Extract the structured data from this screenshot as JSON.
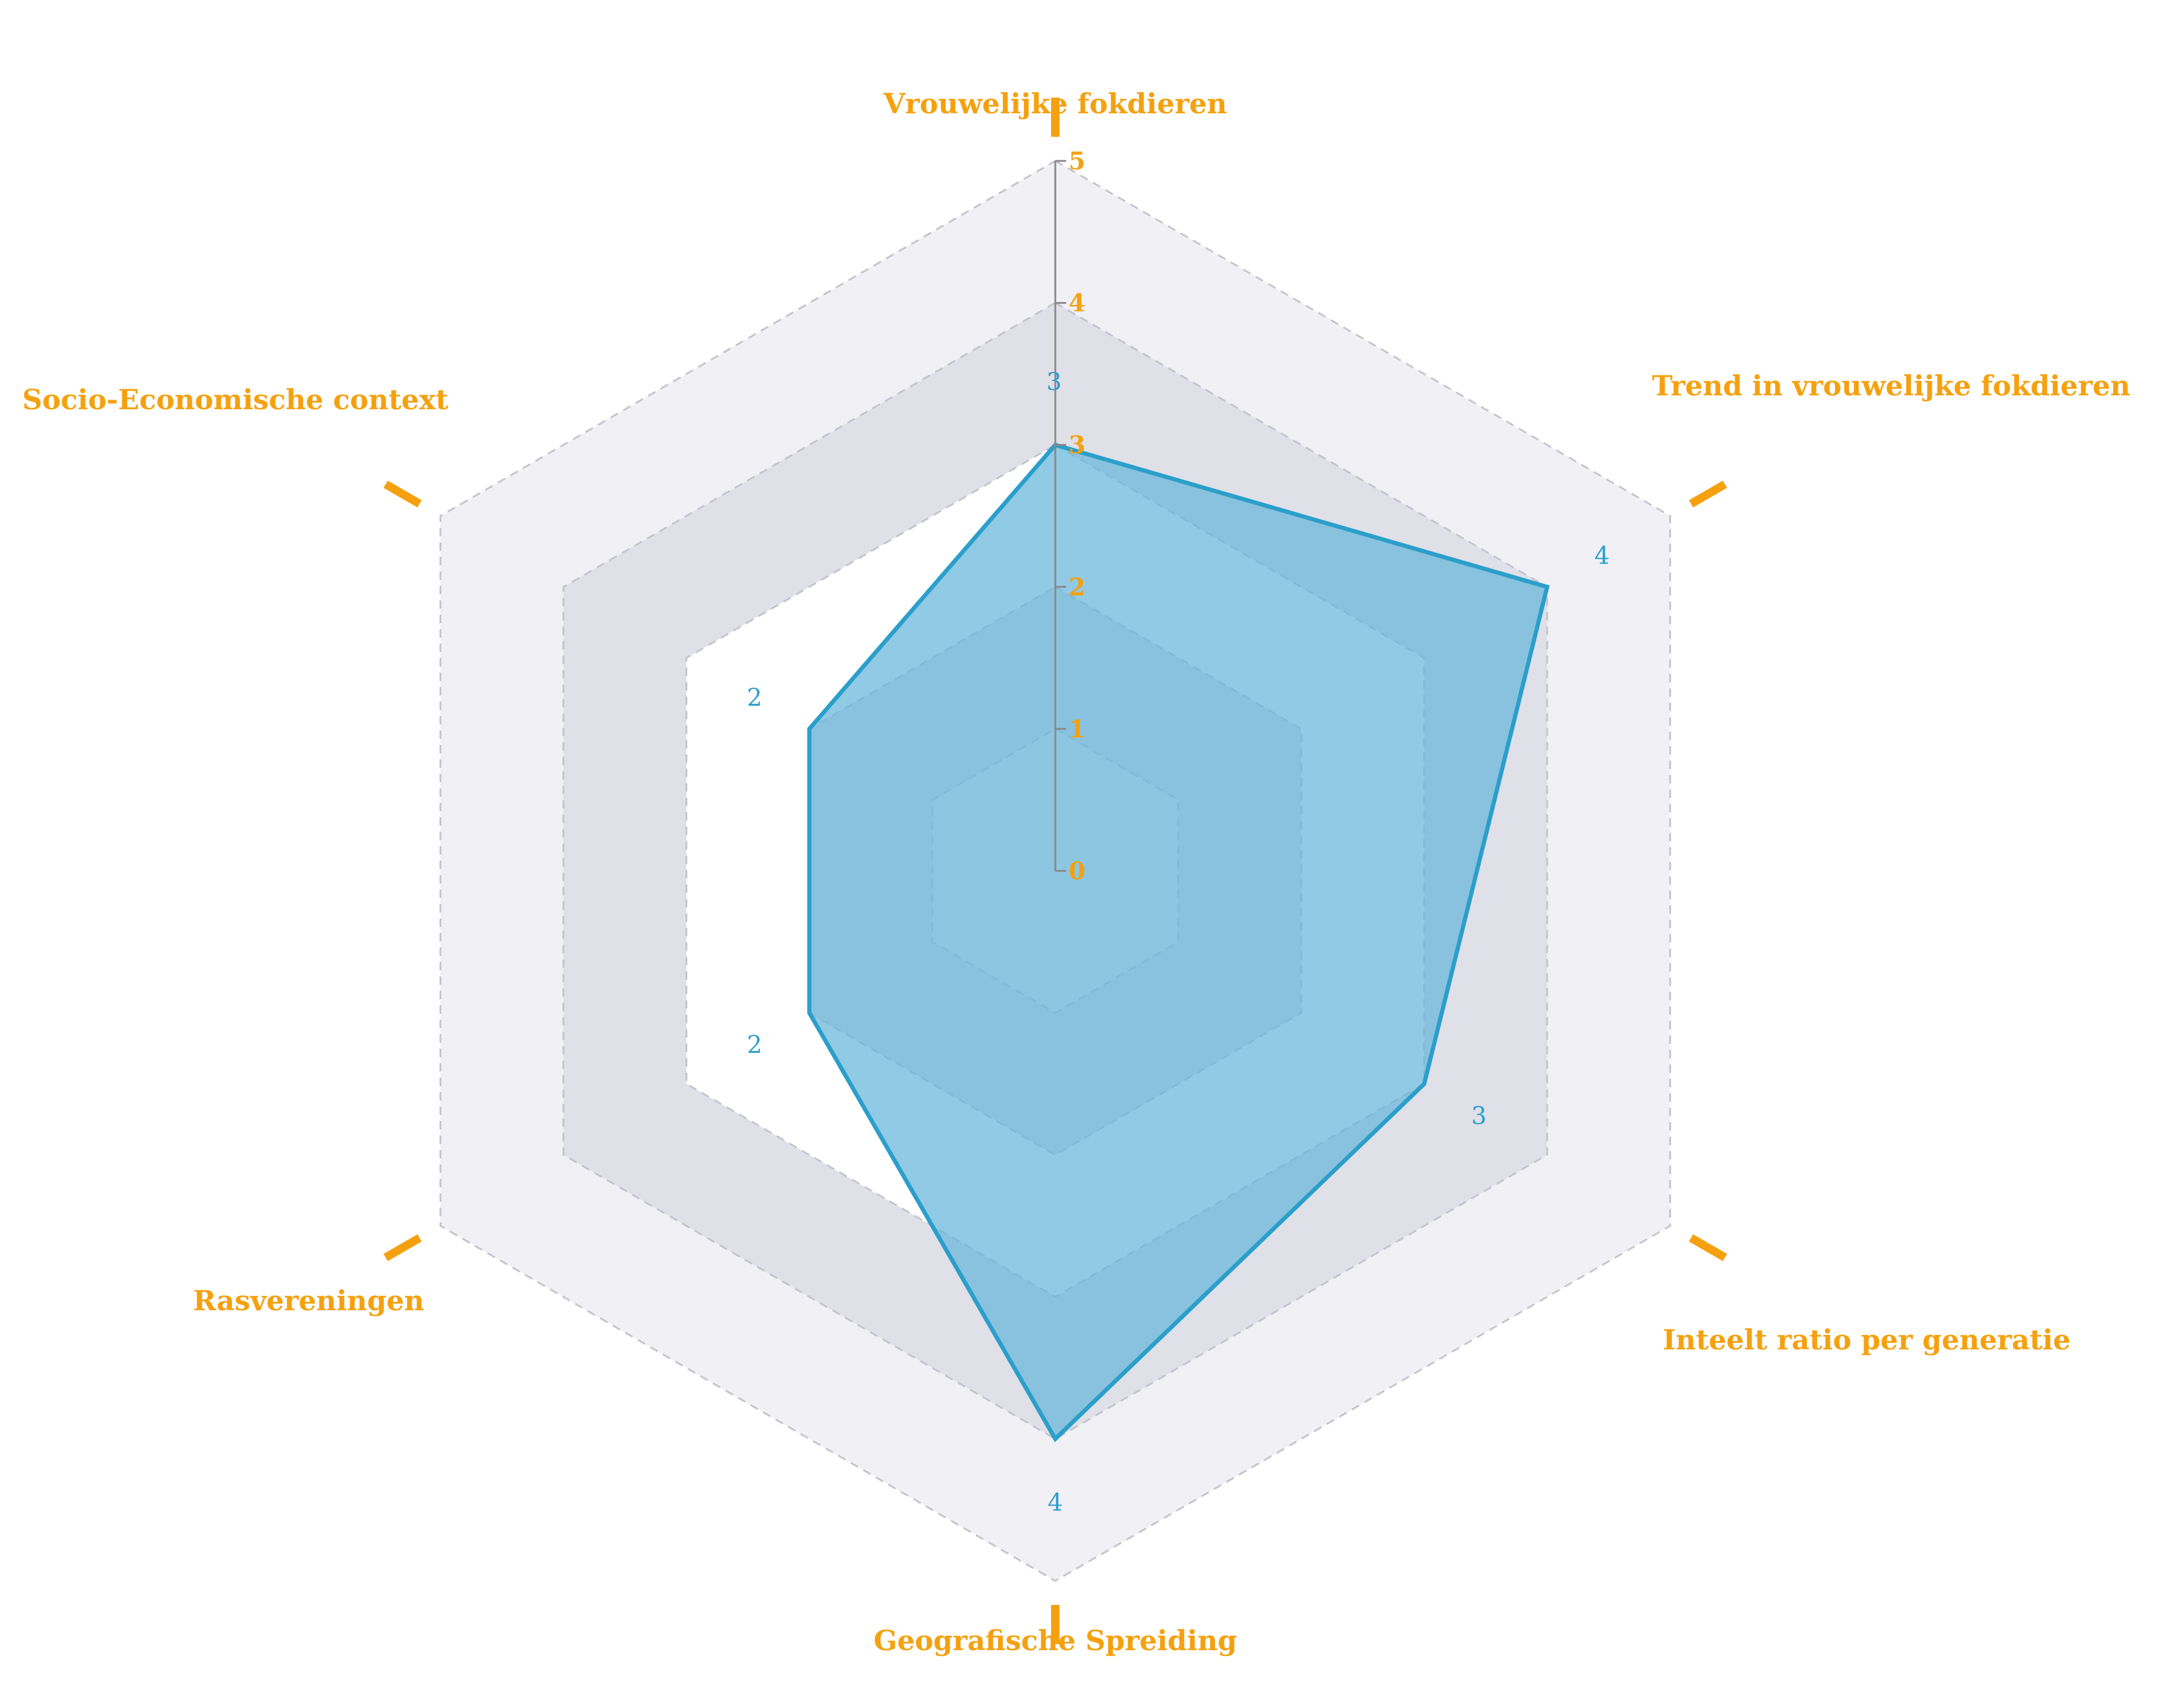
{
  "chart_data": {
    "type": "radar",
    "axes": [
      "Vrouwelijke fokdieren",
      "Trend in vrouwelijke fokdieren",
      "Inteelt ratio per generatie",
      "Geografische Spreiding",
      "Rasvereningen",
      "Socio-Economische context"
    ],
    "series": [
      {
        "values": [
          3,
          4,
          3,
          4,
          2,
          2
        ]
      }
    ],
    "data_labels": [
      "3",
      "4",
      "3",
      "4",
      "2",
      "2"
    ],
    "range": [
      0,
      5
    ],
    "ticks": [
      0,
      1,
      2,
      3,
      4,
      5
    ],
    "tick_labels": [
      "0",
      "1",
      "2",
      "3",
      "4",
      "5"
    ],
    "grid": true,
    "grid_style": "dashed hexagon",
    "colors": {
      "axis_label": "#F5A10F",
      "axis_marker": "#F5A10F",
      "series_line": "#2B9FCB",
      "series_fill": "#66B6DA",
      "band_light": "#F0F0F5",
      "band_dark": "#E0E0E9",
      "band_white": "#FFFFFF",
      "grid_line": "#C4C4CC",
      "radial_axis": "#888888"
    }
  }
}
